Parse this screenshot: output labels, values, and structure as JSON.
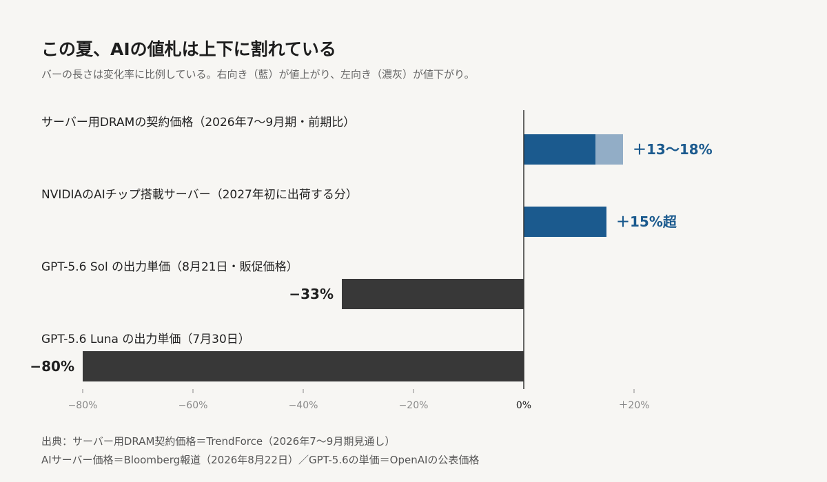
{
  "header": {
    "title": "この夏、AIの値札は上下に割れている",
    "subtitle": "バーの長さは変化率に比例している。右向き（藍）が値上がり、左向き（濃灰）が値下がり。"
  },
  "colors": {
    "increase": "#1b5a8e",
    "increase_range": "#92adc6",
    "decrease": "#383838",
    "increase_label": "#1b5a8e",
    "decrease_label": "#1e1e1e",
    "axis_tick": "#888888",
    "zero_line": "#333333",
    "category_text": "#222222"
  },
  "chart_data": {
    "type": "bar",
    "orientation": "horizontal",
    "x_unit": "%",
    "xlim": [
      -85,
      25
    ],
    "ticks": [
      {
        "value": -80,
        "label": "−80%"
      },
      {
        "value": -60,
        "label": "−60%"
      },
      {
        "value": -40,
        "label": "−40%"
      },
      {
        "value": -20,
        "label": "−20%"
      },
      {
        "value": 0,
        "label": "0%"
      },
      {
        "value": 20,
        "label": "＋20%"
      }
    ],
    "bars": [
      {
        "category": "サーバー用DRAMの契約価格（2026年7〜9月期・前期比）",
        "value": 13,
        "range_end": 18,
        "label": "＋13〜18%",
        "direction": "increase"
      },
      {
        "category": "NVIDIAのAIチップ搭載サーバー（2027年初に出荷する分）",
        "value": 15,
        "label": "＋15%超",
        "direction": "increase"
      },
      {
        "category": "GPT-5.6 Sol の出力単価（8月21日・販促価格）",
        "value": -33,
        "label": "−33%",
        "direction": "decrease"
      },
      {
        "category": "GPT-5.6 Luna の出力単価（7月30日）",
        "value": -80,
        "label": "−80%",
        "direction": "decrease"
      }
    ]
  },
  "source": {
    "line1": "出典：サーバー用DRAM契約価格＝TrendForce（2026年7〜9月期見通し）",
    "line2": "AIサーバー価格＝Bloomberg報道（2026年8月22日）／GPT-5.6の単価＝OpenAIの公表価格"
  }
}
